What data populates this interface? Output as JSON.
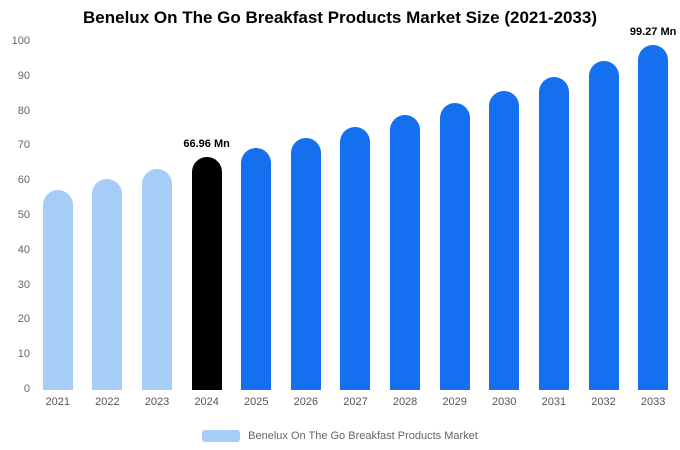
{
  "chart_data": {
    "type": "bar",
    "title": "Benelux On The Go Breakfast Products Market Size (2021-2033)",
    "categories": [
      "2021",
      "2022",
      "2023",
      "2024",
      "2025",
      "2026",
      "2027",
      "2028",
      "2029",
      "2030",
      "2031",
      "2032",
      "2033"
    ],
    "values": [
      57.5,
      60.5,
      63.5,
      66.96,
      69.5,
      72.5,
      75.5,
      79,
      82.5,
      86,
      90,
      94.5,
      99.27
    ],
    "bar_color_keys": [
      "light",
      "light",
      "light",
      "highlight",
      "primary",
      "primary",
      "primary",
      "primary",
      "primary",
      "primary",
      "primary",
      "primary",
      "primary"
    ],
    "colors": {
      "light": "#a6cdf8",
      "highlight": "#000000",
      "primary": "#1570ef"
    },
    "annotations": [
      {
        "index": 3,
        "label": "66.96 Mn"
      },
      {
        "index": 12,
        "label": "99.27 Mn"
      }
    ],
    "ylim": [
      0,
      100
    ],
    "yticks": [
      0,
      10,
      20,
      30,
      40,
      50,
      60,
      70,
      80,
      90,
      100
    ],
    "xlabel": "",
    "ylabel": "",
    "grid": false,
    "legend_position": "bottom",
    "legend_label": "Benelux On The Go Breakfast Products Market"
  }
}
